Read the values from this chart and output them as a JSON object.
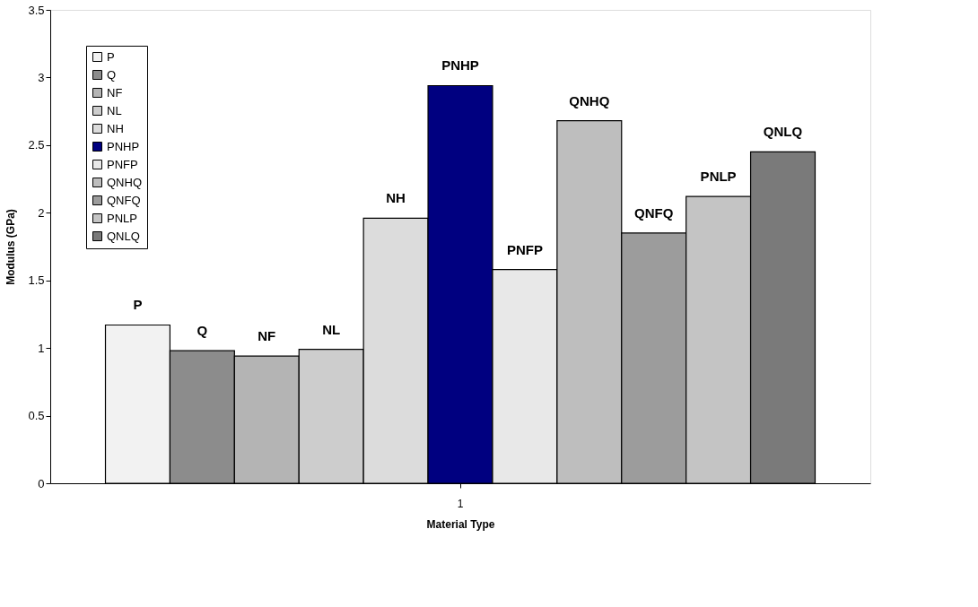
{
  "chart_data": {
    "type": "bar",
    "xlabel": "Material Type",
    "ylabel": "Modulus (GPa)",
    "categories": [
      "1"
    ],
    "series": [
      {
        "name": "P",
        "color": "#f2f2f2",
        "values": [
          1.17
        ]
      },
      {
        "name": "Q",
        "color": "#8c8c8c",
        "values": [
          0.98
        ]
      },
      {
        "name": "NF",
        "color": "#b4b4b4",
        "values": [
          0.94
        ]
      },
      {
        "name": "NL",
        "color": "#cdcdcd",
        "values": [
          0.99
        ]
      },
      {
        "name": "NH",
        "color": "#dcdcdc",
        "values": [
          1.96
        ]
      },
      {
        "name": "PNHP",
        "color": "#000080",
        "values": [
          2.94
        ]
      },
      {
        "name": "PNFP",
        "color": "#e8e8e8",
        "values": [
          1.58
        ]
      },
      {
        "name": "QNHQ",
        "color": "#bebebe",
        "values": [
          2.68
        ]
      },
      {
        "name": "QNFQ",
        "color": "#9c9c9c",
        "values": [
          1.85
        ]
      },
      {
        "name": "PNLP",
        "color": "#c4c4c4",
        "values": [
          2.12
        ]
      },
      {
        "name": "QNLQ",
        "color": "#7a7a7a",
        "values": [
          2.45
        ]
      }
    ],
    "ylim": [
      0,
      3.5
    ],
    "yticks": [
      0,
      0.5,
      1,
      1.5,
      2,
      2.5,
      3,
      3.5
    ],
    "grid": false,
    "legend": "top left"
  }
}
